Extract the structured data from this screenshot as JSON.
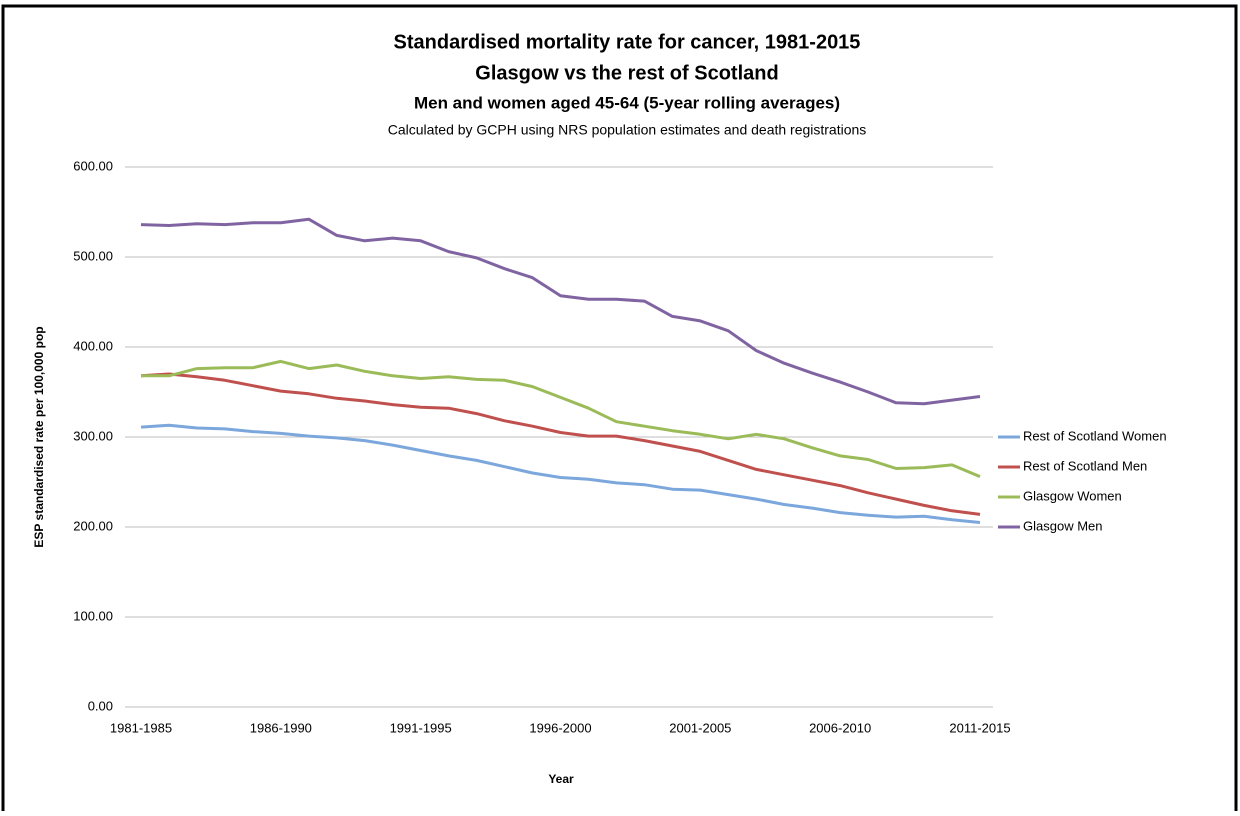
{
  "chart_data": {
    "type": "line",
    "title": "Standardised mortality rate for cancer, 1981-2015",
    "subtitle": "Glasgow vs the rest of Scotland",
    "subtitle2": "Men and women aged 45-64 (5-year rolling averages)",
    "note": "Calculated by GCPH using NRS population estimates and death registrations",
    "x_label": "Year",
    "y_label": "ESP standardised rate per 100,000 pop",
    "categories": [
      "1981-1985",
      null,
      null,
      null,
      null,
      "1986-1990",
      null,
      null,
      null,
      null,
      "1991-1995",
      null,
      null,
      null,
      null,
      "1996-2000",
      null,
      null,
      null,
      null,
      "2001-2005",
      null,
      null,
      null,
      null,
      "2006-2010",
      null,
      null,
      null,
      null,
      "2011-2015"
    ],
    "ylim": [
      0,
      600
    ],
    "yticks": [
      {
        "value": 0,
        "label": "0.00"
      },
      {
        "value": 100,
        "label": "100.00"
      },
      {
        "value": 200,
        "label": "200.00"
      },
      {
        "value": 300,
        "label": "300.00"
      },
      {
        "value": 400,
        "label": "400.00"
      },
      {
        "value": 500,
        "label": "500.00"
      },
      {
        "value": 600,
        "label": "600.00"
      }
    ],
    "grid": true,
    "legend": "right",
    "series": [
      {
        "name": "Rest of Scotland Women",
        "color": "#7ba7dc",
        "values": [
          311,
          313,
          310,
          309,
          306,
          304,
          301,
          299,
          296,
          291,
          285,
          279,
          274,
          267,
          260,
          255,
          253,
          249,
          247,
          242,
          241,
          236,
          231,
          225,
          221,
          216,
          213,
          211,
          212,
          208,
          205
        ]
      },
      {
        "name": "Rest of Scotland Men",
        "color": "#c0504d",
        "values": [
          368,
          370,
          367,
          363,
          357,
          351,
          348,
          343,
          340,
          336,
          333,
          332,
          326,
          318,
          312,
          305,
          301,
          301,
          296,
          290,
          284,
          274,
          264,
          258,
          252,
          246,
          238,
          231,
          224,
          218,
          214
        ]
      },
      {
        "name": "Glasgow Women",
        "color": "#9bbb59",
        "values": [
          368,
          368,
          376,
          377,
          377,
          384,
          376,
          380,
          373,
          368,
          365,
          367,
          364,
          363,
          356,
          344,
          332,
          317,
          312,
          307,
          303,
          298,
          303,
          298,
          288,
          279,
          275,
          265,
          266,
          269,
          256
        ]
      },
      {
        "name": "Glasgow Men",
        "color": "#8064a2",
        "values": [
          536,
          535,
          537,
          536,
          538,
          538,
          542,
          524,
          518,
          521,
          518,
          506,
          499,
          487,
          477,
          457,
          453,
          453,
          451,
          434,
          429,
          418,
          396,
          382,
          371,
          361,
          350,
          338,
          337,
          341,
          345
        ]
      }
    ]
  }
}
